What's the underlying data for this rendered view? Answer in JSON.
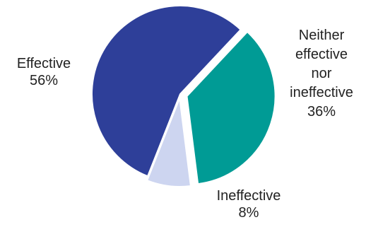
{
  "chart_data": {
    "type": "pie",
    "title": "",
    "slices": [
      {
        "label": "Effective",
        "value": 56,
        "percent_label": "56%",
        "color": "#2E3F99",
        "label_lines": [
          "Effective"
        ]
      },
      {
        "label": "Neither effective nor ineffective",
        "value": 36,
        "percent_label": "36%",
        "color": "#009B95",
        "label_lines": [
          "Neither",
          "effective",
          "nor",
          "ineffective"
        ]
      },
      {
        "label": "Ineffective",
        "value": 8,
        "percent_label": "8%",
        "color": "#CDD5F0",
        "label_lines": [
          "Ineffective"
        ]
      }
    ],
    "legend": "none"
  }
}
